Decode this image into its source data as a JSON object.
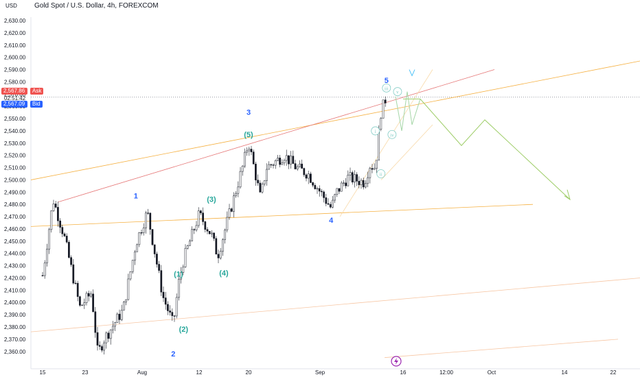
{
  "header": {
    "currency": "USD",
    "symbol_title": "Gold Spot / U.S. Dollar, 4h, FOREXCOM"
  },
  "price_tags": {
    "ask_price": "2,567.86",
    "ask_label": "Ask",
    "countdown": "02:51:42",
    "bid_price": "2,567.09",
    "bid_label": "Bid"
  },
  "colors": {
    "ask": "#ef5350",
    "bid": "#2962ff",
    "wave_green": "#26a69a",
    "wave_blue": "#2962ff",
    "candle": "#131722",
    "fib_orange": "#f5b041",
    "fib_pink": "#e57373",
    "projection": "#9ccc65",
    "subwave": "#80cbc4",
    "flash": "#9c27b0"
  },
  "chart_data": {
    "type": "candlestick",
    "y_axis": {
      "min": 2355,
      "max": 2635,
      "ticks": [
        "2,630.00",
        "2,620.00",
        "2,610.00",
        "2,600.00",
        "2,590.00",
        "2,580.00",
        "2,570.00",
        "2,560.00",
        "2,550.00",
        "2,540.00",
        "2,530.00",
        "2,520.00",
        "2,510.00",
        "2,500.00",
        "2,490.00",
        "2,480.00",
        "2,470.00",
        "2,460.00",
        "2,450.00",
        "2,440.00",
        "2,430.00",
        "2,420.00",
        "2,410.00",
        "2,400.00",
        "2,390.00",
        "2,380.00",
        "2,370.00",
        "2,360.00"
      ]
    },
    "x_axis": {
      "ticks": [
        "15",
        "23",
        "Aug",
        "12",
        "20",
        "Sep",
        "16",
        "12:00",
        "Oct",
        "14",
        "22"
      ]
    },
    "price_path": [
      [
        "Jul 15",
        2422
      ],
      [
        "Jul 17",
        2484
      ],
      [
        "Jul 19",
        2455
      ],
      [
        "Jul 22",
        2396
      ],
      [
        "Jul 24",
        2408
      ],
      [
        "Jul 25",
        2358
      ],
      [
        "Jul 26",
        2370
      ],
      [
        "Jul 29",
        2394
      ],
      [
        "Jul 31",
        2448
      ],
      [
        "Aug 2",
        2474
      ],
      [
        "Aug 5",
        2405
      ],
      [
        "Aug 7",
        2382
      ],
      [
        "Aug 8",
        2415
      ],
      [
        "Aug 9",
        2435
      ],
      [
        "Aug 12",
        2472
      ],
      [
        "Aug 14",
        2455
      ],
      [
        "Aug 15",
        2438
      ],
      [
        "Aug 19",
        2510
      ],
      [
        "Aug 20",
        2531
      ],
      [
        "Aug 22",
        2485
      ],
      [
        "Aug 23",
        2510
      ],
      [
        "Aug 26",
        2520
      ],
      [
        "Aug 28",
        2510
      ],
      [
        "Aug 30",
        2505
      ],
      [
        "Sep 3",
        2477
      ],
      [
        "Sep 4",
        2490
      ],
      [
        "Sep 6",
        2502
      ],
      [
        "Sep 9",
        2498
      ],
      [
        "Sep 10",
        2512
      ],
      [
        "Sep 11",
        2510
      ],
      [
        "Sep 12",
        2555
      ],
      [
        "Sep 13",
        2568
      ]
    ],
    "wave_labels": [
      {
        "text": "1",
        "color": "blue",
        "date": "Jul 31",
        "price": 2485
      },
      {
        "text": "2",
        "color": "blue",
        "date": "Aug 7",
        "price": 2356
      },
      {
        "text": "3",
        "color": "blue",
        "date": "Aug 20",
        "price": 2553
      },
      {
        "text": "4",
        "color": "blue",
        "date": "Sep 3",
        "price": 2465
      },
      {
        "text": "5",
        "color": "blue",
        "date": "Sep 13",
        "price": 2579
      },
      {
        "text": "(1)",
        "color": "green",
        "date": "Aug 8",
        "price": 2421
      },
      {
        "text": "(2)",
        "color": "green",
        "date": "Aug 9",
        "price": 2376
      },
      {
        "text": "(3)",
        "color": "green",
        "date": "Aug 14",
        "price": 2482
      },
      {
        "text": "(4)",
        "color": "green",
        "date": "Aug 16",
        "price": 2422
      },
      {
        "text": "(5)",
        "color": "green",
        "date": "Aug 20",
        "price": 2535
      }
    ],
    "subwaves": [
      {
        "text": "i",
        "date": "Sep 11",
        "price": 2540
      },
      {
        "text": "ii",
        "date": "Sep 12",
        "price": 2505
      },
      {
        "text": "iii",
        "date": "Sep 13",
        "price": 2575
      },
      {
        "text": "iv",
        "date": "Sep 14",
        "price": 2537
      },
      {
        "text": "v",
        "date": "Sep 15",
        "price": 2572
      }
    ]
  }
}
